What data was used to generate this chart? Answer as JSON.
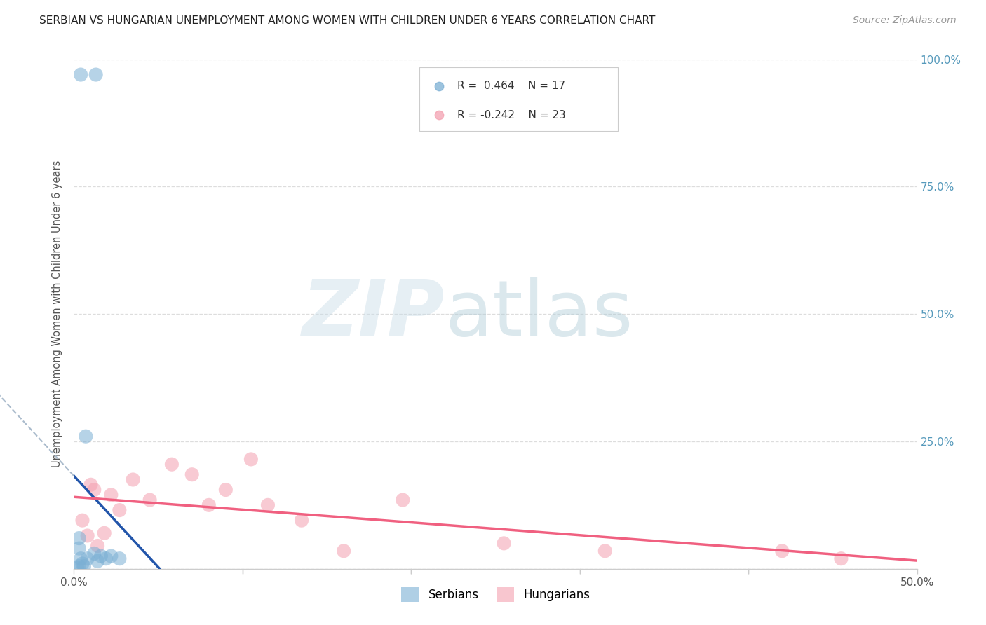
{
  "title": "SERBIAN VS HUNGARIAN UNEMPLOYMENT AMONG WOMEN WITH CHILDREN UNDER 6 YEARS CORRELATION CHART",
  "source": "Source: ZipAtlas.com",
  "ylabel": "Unemployment Among Women with Children Under 6 years",
  "xlim": [
    0.0,
    0.5
  ],
  "ylim": [
    0.0,
    1.0
  ],
  "xticks": [
    0.0,
    0.1,
    0.2,
    0.3,
    0.4,
    0.5
  ],
  "xticklabels": [
    "0.0%",
    "",
    "",
    "",
    "",
    "50.0%"
  ],
  "yticks": [
    0.0,
    0.25,
    0.5,
    0.75,
    1.0
  ],
  "yticklabels_right": [
    "",
    "25.0%",
    "50.0%",
    "75.0%",
    "100.0%"
  ],
  "serbian_R": 0.464,
  "serbian_N": 17,
  "hungarian_R": -0.242,
  "hungarian_N": 23,
  "serbian_color": "#7BAFD4",
  "hungarian_color": "#F4A0B0",
  "serbian_line_color": "#2255AA",
  "hungarian_line_color": "#F06080",
  "tick_label_color": "#5599BB",
  "serbian_x": [
    0.004,
    0.013,
    0.007,
    0.003,
    0.003,
    0.004,
    0.005,
    0.006,
    0.008,
    0.012,
    0.016,
    0.022,
    0.027,
    0.014,
    0.019,
    0.003,
    0.002
  ],
  "serbian_y": [
    0.97,
    0.97,
    0.26,
    0.06,
    0.04,
    0.02,
    0.01,
    0.005,
    0.02,
    0.03,
    0.025,
    0.025,
    0.02,
    0.015,
    0.02,
    0.005,
    0.001
  ],
  "hungarian_x": [
    0.005,
    0.008,
    0.01,
    0.012,
    0.014,
    0.018,
    0.022,
    0.027,
    0.035,
    0.045,
    0.058,
    0.07,
    0.08,
    0.09,
    0.105,
    0.115,
    0.135,
    0.16,
    0.195,
    0.255,
    0.315,
    0.42,
    0.455
  ],
  "hungarian_y": [
    0.095,
    0.065,
    0.165,
    0.155,
    0.045,
    0.07,
    0.145,
    0.115,
    0.175,
    0.135,
    0.205,
    0.185,
    0.125,
    0.155,
    0.215,
    0.125,
    0.095,
    0.035,
    0.135,
    0.05,
    0.035,
    0.035,
    0.02
  ]
}
